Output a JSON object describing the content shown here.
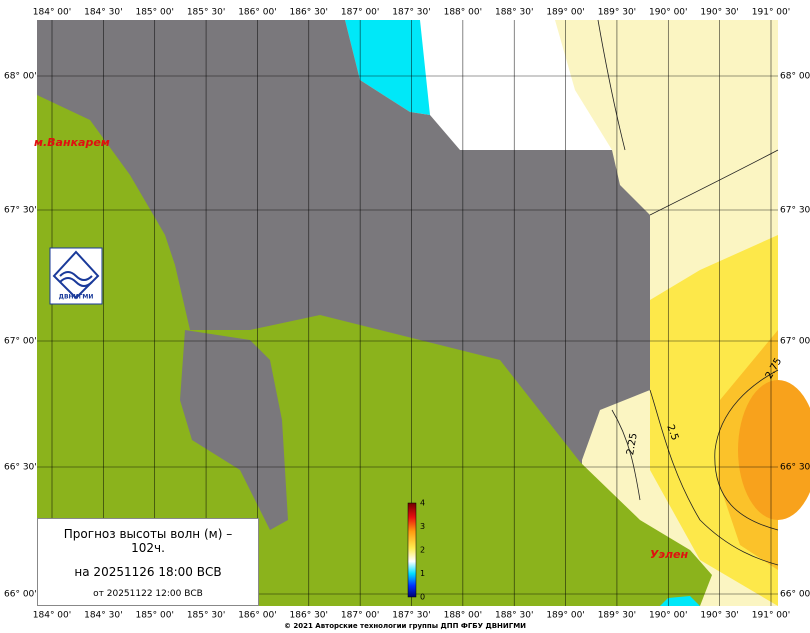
{
  "map": {
    "longitude_labels": [
      "184° 00'",
      "184° 30'",
      "185° 00'",
      "185° 30'",
      "186° 00'",
      "186° 30'",
      "187° 00'",
      "187° 30'",
      "188° 00'",
      "188° 30'",
      "189° 00'",
      "189° 30'",
      "190° 00'",
      "190° 30'",
      "191° 00'"
    ],
    "latitude_labels": [
      "68° 00'",
      "67° 30'",
      "67° 00'",
      "66° 30'",
      "66° 00'"
    ],
    "places": [
      "м.Ванкарем",
      "Уэлен"
    ],
    "contour_labels": [
      "2.75",
      "2.5",
      "2.25"
    ],
    "colorbar_ticks": [
      4,
      3,
      2,
      1,
      0
    ],
    "logo_text": "ДВНИГМИ"
  },
  "info": {
    "title": "Прогноз высоты волн (м) – 102ч.",
    "valid": "на 20251126 18:00 ВСВ",
    "issued": "от 20251122 12:00 ВСВ"
  },
  "footer": "© 2021 Авторские технологии группы ДПП ФГБУ ДВНИГМИ"
}
